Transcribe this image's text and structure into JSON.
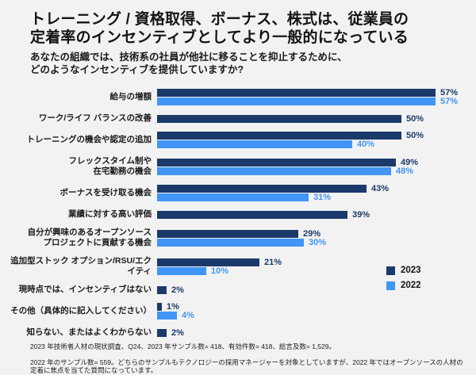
{
  "page": {
    "title_line1": "トレーニング / 資格取得、ボーナス、株式は、従業員の",
    "title_line2": "定着率のインセンティブとしてより一般的になっている",
    "subtitle_line1": "あなたの組織では、技術系の社員が他社に移ることを抑止するために、",
    "subtitle_line2": "どのようなインセンティブを提供していますか?"
  },
  "legend": {
    "items": [
      {
        "label": "2023",
        "color": "#1b3a6b"
      },
      {
        "label": "2022",
        "color": "#4095f6"
      }
    ]
  },
  "footnotes": {
    "line1": "2023 年技術者人材の現状調査、Q24、2023 年サンプル数= 418、有効件数= 418、総言及数= 1,529。",
    "line2": "2022 年のサンプル数= 559。どちらのサンプルもテクノロジーの採用マネージャーを対象としていますが、2022 年ではオープンソースの人材の定着に焦点を当てた質問になっています。"
  },
  "colors": {
    "background": "#f2f2f2",
    "bar_2023": "#1b3a6b",
    "bar_2022": "#4095f6",
    "value_2023": "#1b3a6b",
    "value_2022": "#4095f6"
  },
  "chart_data": {
    "type": "bar",
    "orientation": "horizontal",
    "title": "トレーニング / 資格取得、ボーナス、株式は、従業員の定着率のインセンティブとしてより一般的になっている",
    "subtitle": "あなたの組織では、技術系の社員が他社に移ることを抑止するために、どのようなインセンティブを提供していますか?",
    "value_suffix": "%",
    "xlim": [
      0,
      60
    ],
    "grid": false,
    "legend_position": "right-middle",
    "categories": [
      "給与の増額",
      "ワーク/ライフ バランスの改善",
      "トレーニングの機会や認定の追加",
      "フレックスタイム制や\n在宅勤務の機会",
      "ボーナスを受け取る機会",
      "業績に対する高い評価",
      "自分が興味のあるオープンソース\nプロジェクトに貢献する機会",
      "追加型ストック オプション/RSU/エクイティ",
      "現時点では、インセンティブはない",
      "その他（具体的に記入してください）",
      "知らない、またはよくわからない"
    ],
    "series": [
      {
        "name": "2023",
        "color": "#1b3a6b",
        "values": [
          57,
          50,
          50,
          49,
          43,
          39,
          29,
          21,
          2,
          1,
          2
        ]
      },
      {
        "name": "2022",
        "color": "#4095f6",
        "values": [
          57,
          null,
          40,
          48,
          31,
          null,
          30,
          10,
          null,
          4,
          null
        ]
      }
    ]
  }
}
